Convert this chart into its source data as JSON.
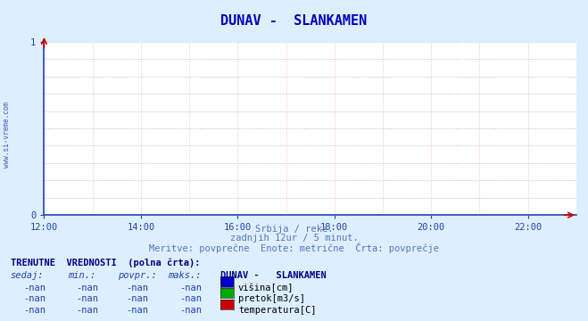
{
  "title": "DUNAV -  SLANKAMEN",
  "title_color": "#0000bb",
  "bg_color": "#ddeeff",
  "plot_bg_color": "#ffffff",
  "grid_color_h": "#aaaadd",
  "grid_color_v": "#ffaaaa",
  "xmin": 12.0,
  "xmax": 23.0,
  "ymin": 0.0,
  "ymax": 1.0,
  "x_ticks": [
    12,
    14,
    16,
    18,
    20,
    22
  ],
  "x_tick_labels": [
    "12:00",
    "14:00",
    "16:00",
    "18:00",
    "20:00",
    "22:00"
  ],
  "y_ticks": [
    0,
    1
  ],
  "y_tick_labels": [
    "0",
    "1"
  ],
  "axis_color": "#2244aa",
  "watermark": "www.si-vreme.com",
  "subtitle1": "Srbija / reke.",
  "subtitle2": "zadnjih 12ur / 5 minut.",
  "subtitle3": "Meritve: povprečne  Enote: metrične  Črta: povprečje",
  "subtitle_color": "#5577bb",
  "section_label": "TRENUTNE  VREDNOSTI  (polna črta):",
  "section_label_color": "#000088",
  "col_headers": [
    "sedaj:",
    "min.:",
    "povpr.:",
    "maks.:"
  ],
  "col_header_color": "#2244aa",
  "station_header": "DUNAV -   SLANKAMEN",
  "station_header_color": "#000088",
  "rows": [
    {
      "color": "#0000cc",
      "label": "višina[cm]"
    },
    {
      "color": "#00aa00",
      "label": "pretok[m3/s]"
    },
    {
      "color": "#cc0000",
      "label": "temperatura[C]"
    }
  ],
  "arrow_color": "#cc0000",
  "axis_line_color": "#2244bb"
}
